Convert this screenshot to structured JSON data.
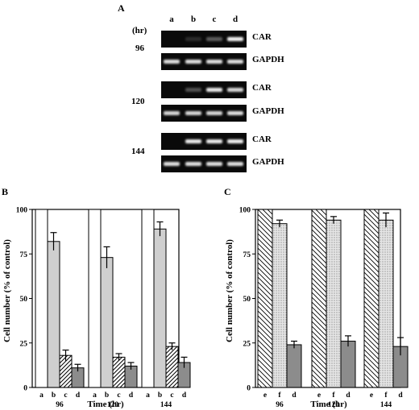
{
  "panel_a": {
    "letter": "A",
    "unit_label": "(hr)",
    "lane_labels": [
      "a",
      "b",
      "c",
      "d"
    ],
    "gels": [
      {
        "time": "96",
        "rows": [
          {
            "label": "CAR",
            "intensities": [
              0.0,
              0.12,
              0.35,
              0.95
            ]
          },
          {
            "label": "GAPDH",
            "intensities": [
              0.85,
              0.85,
              0.85,
              0.85
            ]
          }
        ]
      },
      {
        "time": "120",
        "rows": [
          {
            "label": "CAR",
            "intensities": [
              0.0,
              0.3,
              0.9,
              0.8
            ]
          },
          {
            "label": "GAPDH",
            "intensities": [
              0.8,
              0.8,
              0.8,
              0.85
            ]
          }
        ]
      },
      {
        "time": "144",
        "rows": [
          {
            "label": "CAR",
            "intensities": [
              0.0,
              0.9,
              0.9,
              0.92
            ]
          },
          {
            "label": "GAPDH",
            "intensities": [
              0.85,
              0.85,
              0.85,
              0.85
            ]
          }
        ]
      }
    ]
  },
  "chart_data": [
    {
      "panel": "B",
      "type": "bar",
      "ylabel": "Cell number  (% of control)",
      "xlabel": "Time  (hr)",
      "ylim": [
        0,
        100
      ],
      "yticks": [
        "0",
        "25",
        "50",
        "75",
        "100"
      ],
      "groups": [
        {
          "time": "96",
          "bars": [
            {
              "lane": "a",
              "value": 100,
              "err": 0,
              "fill": "white"
            },
            {
              "lane": "b",
              "value": 82,
              "err": 5,
              "fill": "lightgray"
            },
            {
              "lane": "c",
              "value": 18,
              "err": 3,
              "fill": "hatch"
            },
            {
              "lane": "d",
              "value": 11,
              "err": 2,
              "fill": "darkgray"
            }
          ]
        },
        {
          "time": "120",
          "bars": [
            {
              "lane": "a",
              "value": 100,
              "err": 0,
              "fill": "white"
            },
            {
              "lane": "b",
              "value": 73,
              "err": 6,
              "fill": "lightgray"
            },
            {
              "lane": "c",
              "value": 17,
              "err": 2,
              "fill": "hatch"
            },
            {
              "lane": "d",
              "value": 12,
              "err": 2,
              "fill": "darkgray"
            }
          ]
        },
        {
          "time": "144",
          "bars": [
            {
              "lane": "a",
              "value": 100,
              "err": 0,
              "fill": "white"
            },
            {
              "lane": "b",
              "value": 89,
              "err": 4,
              "fill": "lightgray"
            },
            {
              "lane": "c",
              "value": 23,
              "err": 2,
              "fill": "hatch"
            },
            {
              "lane": "d",
              "value": 14,
              "err": 3,
              "fill": "darkgray"
            }
          ]
        }
      ]
    },
    {
      "panel": "C",
      "type": "bar",
      "ylabel": "Cell number  (% of control)",
      "xlabel": "Time  (hr)",
      "ylim": [
        0,
        100
      ],
      "yticks": [
        "0",
        "25",
        "50",
        "75",
        "100"
      ],
      "groups": [
        {
          "time": "96",
          "bars": [
            {
              "lane": "e",
              "value": 100,
              "err": 0,
              "fill": "hatch-back"
            },
            {
              "lane": "f",
              "value": 92,
              "err": 2,
              "fill": "dots"
            },
            {
              "lane": "d",
              "value": 24,
              "err": 2,
              "fill": "darkgray"
            }
          ]
        },
        {
          "time": "120",
          "bars": [
            {
              "lane": "e",
              "value": 100,
              "err": 0,
              "fill": "hatch-back"
            },
            {
              "lane": "f",
              "value": 94,
              "err": 2,
              "fill": "dots"
            },
            {
              "lane": "d",
              "value": 26,
              "err": 3,
              "fill": "darkgray"
            }
          ]
        },
        {
          "time": "144",
          "bars": [
            {
              "lane": "e",
              "value": 100,
              "err": 0,
              "fill": "hatch-back"
            },
            {
              "lane": "f",
              "value": 94,
              "err": 4,
              "fill": "dots"
            },
            {
              "lane": "d",
              "value": 23,
              "err": 5,
              "fill": "darkgray"
            }
          ]
        }
      ]
    }
  ]
}
